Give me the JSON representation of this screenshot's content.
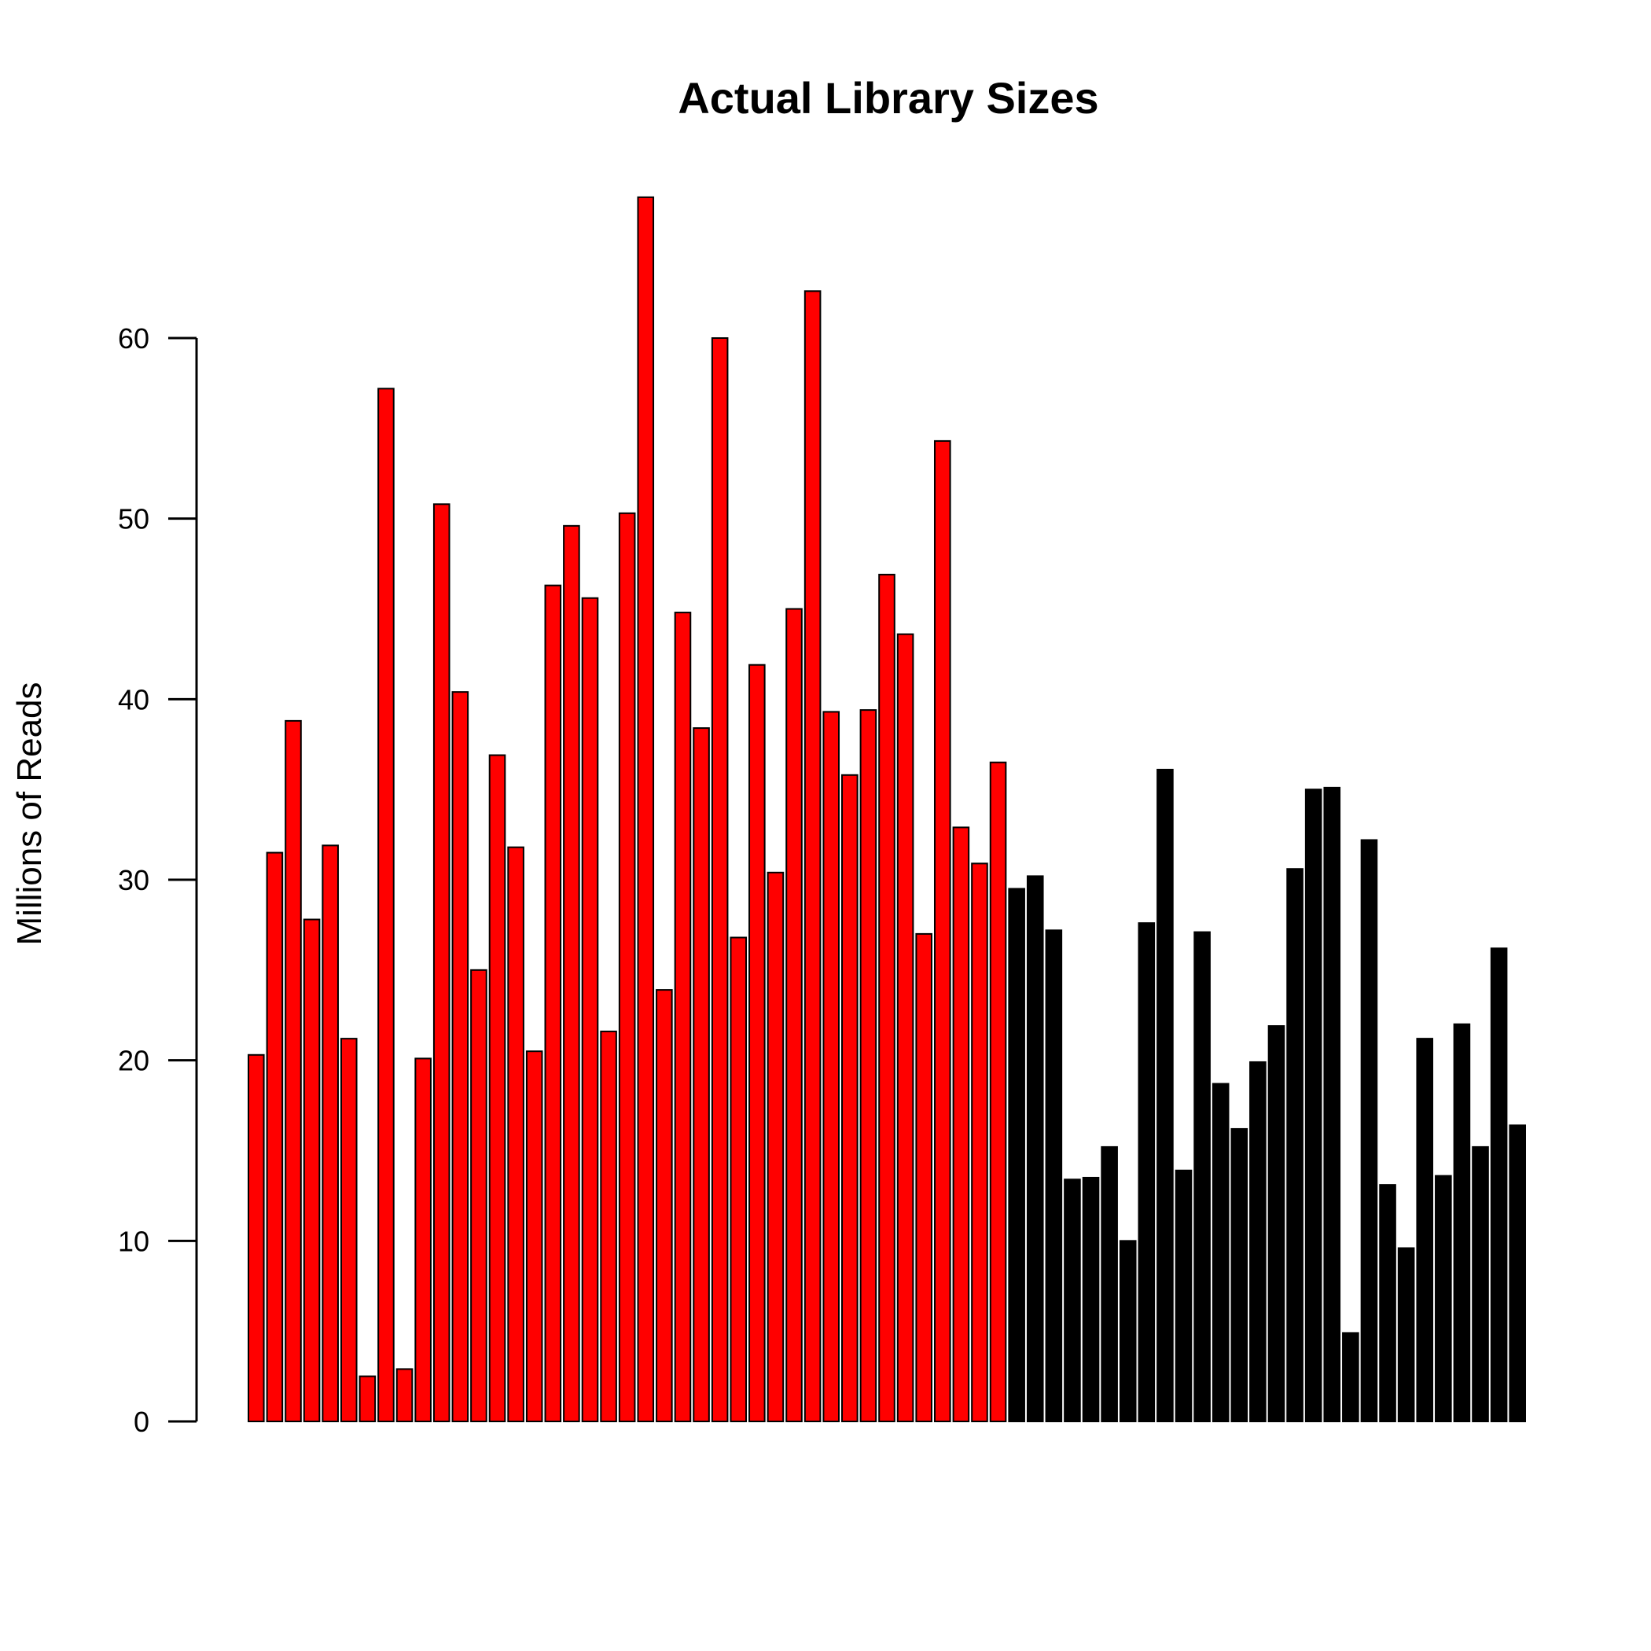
{
  "chart_data": {
    "type": "bar",
    "title": "Actual Library Sizes",
    "ylabel": "Millions of Reads",
    "xlabel": "",
    "ylim": [
      0,
      68
    ],
    "yticks": [
      0,
      10,
      20,
      30,
      40,
      50,
      60
    ],
    "grid": false,
    "legend": null,
    "colors": {
      "group_a": "#ff0000",
      "group_b": "#000000",
      "border": "#000000"
    },
    "series": [
      {
        "values": [
          20.3,
          31.5,
          38.8,
          27.8,
          31.9,
          21.2,
          2.5,
          57.2,
          2.9,
          20.1,
          50.8,
          40.4,
          25.0,
          36.9,
          31.8,
          20.5,
          46.3,
          49.6,
          45.6,
          21.6,
          50.3,
          67.8,
          23.9,
          44.8,
          38.4,
          60.0,
          26.8,
          41.9,
          30.4,
          45.0,
          62.6,
          39.3,
          35.8,
          39.4,
          46.9,
          43.6,
          27.0,
          54.3,
          32.9,
          30.9,
          36.5
        ]
      },
      {
        "values": [
          29.5,
          30.2,
          27.2,
          13.4,
          13.5,
          15.2,
          10.0,
          27.6,
          36.1,
          13.9,
          27.1,
          18.7,
          16.2,
          19.9,
          21.9,
          30.6,
          35.0,
          35.1,
          4.9,
          32.2,
          13.1,
          9.6,
          21.2,
          13.6,
          22.0,
          15.2,
          26.2,
          16.4
        ]
      }
    ]
  }
}
